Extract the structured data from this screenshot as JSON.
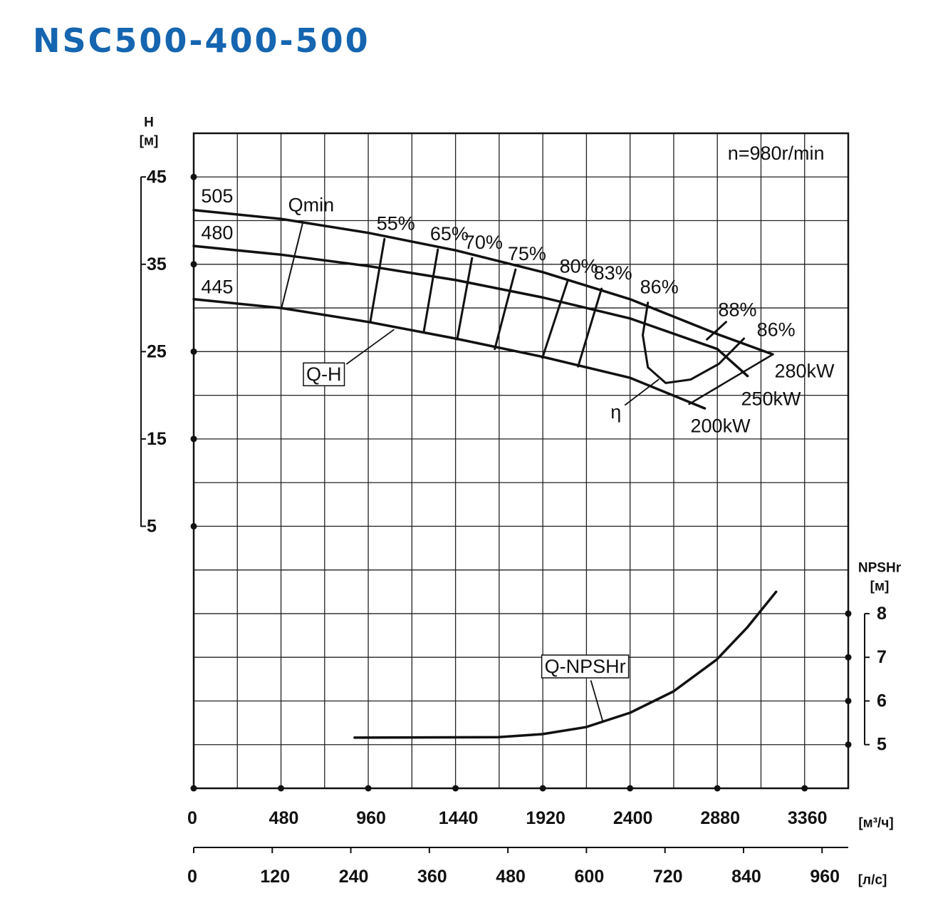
{
  "chart_data": {
    "type": "pump-curve",
    "title": "NSC500-400-500",
    "speed": "n=980r/min",
    "x_unit": "[м³/ч]",
    "xlim": [
      0,
      3600
    ],
    "xticks": [
      0,
      480,
      960,
      1440,
      1920,
      2400,
      2880,
      3360
    ],
    "xminor": [
      240,
      720,
      1200,
      1680,
      2160,
      2640,
      3120
    ],
    "x2_unit": "[л/с]",
    "x2lim": [
      0,
      1000
    ],
    "x2ticks": [
      0,
      120,
      240,
      360,
      480,
      600,
      720,
      840,
      960
    ],
    "y_label": [
      "H",
      "[м]"
    ],
    "ylim": [
      -25,
      50
    ],
    "yticks": [
      5,
      15,
      25,
      35,
      45
    ],
    "ygrid": [
      -20,
      -15,
      -10,
      -5,
      0,
      10,
      20,
      30,
      40
    ],
    "y2_label": [
      "NPSHr",
      "[м]"
    ],
    "y2lim": [
      4,
      19
    ],
    "y2ticks": [
      5,
      6,
      7,
      8
    ],
    "series": [
      {
        "name": "505",
        "label_at": [
          129,
          42.8
        ],
        "x": [
          0,
          480,
          960,
          1440,
          1920,
          2400,
          2880,
          3183
        ],
        "values": [
          41.2,
          40.2,
          38.6,
          36.6,
          34.1,
          31.0,
          27.0,
          24.7
        ]
      },
      {
        "name": "480",
        "label_at": [
          129,
          38.6
        ],
        "x": [
          0,
          480,
          960,
          1440,
          1920,
          2400,
          2880,
          3046
        ],
        "values": [
          37.1,
          36.1,
          34.8,
          33.2,
          31.2,
          28.8,
          25.3,
          22.2
        ]
      },
      {
        "name": "445",
        "label_at": [
          129,
          32.4
        ],
        "x": [
          0,
          480,
          960,
          1440,
          1920,
          2400,
          2811
        ],
        "values": [
          31.0,
          30.0,
          28.4,
          26.5,
          24.4,
          22.0,
          18.5
        ]
      },
      {
        "name": "Q-NPSHr",
        "axis": "y2",
        "x": [
          885,
          1676,
          1918,
          2157,
          2400,
          2639,
          2877,
          3046,
          3203
        ],
        "values": [
          5.16,
          5.17,
          5.24,
          5.4,
          5.73,
          6.22,
          6.95,
          7.69,
          8.5
        ]
      }
    ],
    "efficiency_lines": [
      {
        "label": "55%",
        "x": [
          1049,
          971
        ],
        "y": [
          37.9,
          28.4
        ]
      },
      {
        "label": "65%",
        "x": [
          1343,
          1265
        ],
        "y": [
          36.7,
          27.2
        ]
      },
      {
        "label": "70%",
        "x": [
          1531,
          1449
        ],
        "y": [
          35.7,
          26.4
        ]
      },
      {
        "label": "75%",
        "x": [
          1770,
          1656
        ],
        "y": [
          34.4,
          25.3
        ]
      },
      {
        "label": "80%",
        "x": [
          2055,
          1918
        ],
        "y": [
          33.0,
          24.3
        ]
      },
      {
        "label": "83%",
        "x": [
          2243,
          2114
        ],
        "y": [
          32.2,
          23.3
        ]
      },
      {
        "label": "86%",
        "x": [
          2498,
          2470,
          2498,
          2596,
          2733,
          2889,
          3026
        ],
        "y": [
          30.6,
          26.9,
          23.2,
          21.4,
          21.8,
          23.6,
          26.5
        ]
      },
      {
        "label": "88%",
        "x": [
          2823,
          2928
        ],
        "y": [
          26.4,
          28.4
        ]
      }
    ],
    "qmin": {
      "label": "Qmin",
      "label_at": [
        646,
        41.8
      ],
      "x": [
        599,
        482
      ],
      "y": [
        39.7,
        29.9
      ]
    },
    "power_line": {
      "x": [
        3187,
        2725
      ],
      "y": [
        24.7,
        19.0
      ]
    },
    "annotations": [
      {
        "text": "86%",
        "at": [
          3203,
          27.5
        ]
      },
      {
        "text": "280kW",
        "at": [
          3359,
          22.8
        ]
      },
      {
        "text": "250kW",
        "at": [
          3175,
          19.6
        ]
      },
      {
        "text": "200kW",
        "at": [
          2897,
          16.5
        ]
      }
    ],
    "callouts": [
      {
        "text": "Q-H",
        "at": [
          716,
          22.4
        ],
        "leader_x": [
          842,
          1100
        ],
        "leader_y": [
          23.6,
          27.5
        ]
      },
      {
        "text": "η",
        "at": [
          2322,
          18.1
        ],
        "leader_x": [
          2373,
          2557
        ],
        "leader_y": [
          18.9,
          21.8
        ]
      },
      {
        "text": "Q-NPSHr",
        "axis": "y2",
        "at": [
          2153,
          6.79
        ],
        "leader_x": [
          2185,
          2251
        ],
        "leader_y": [
          6.46,
          5.52
        ]
      }
    ]
  }
}
